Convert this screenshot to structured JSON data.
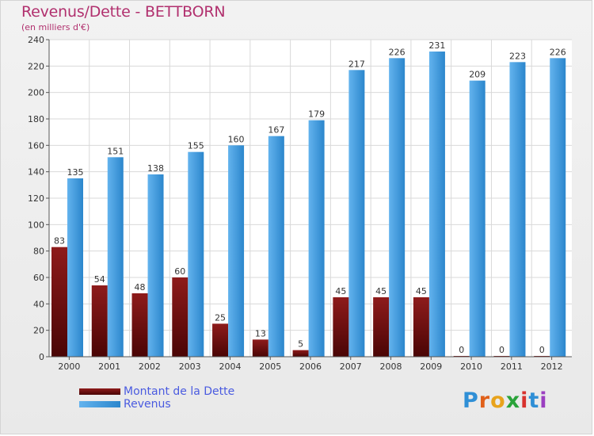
{
  "chart_data": {
    "type": "bar",
    "title": "Revenus/Dette - BETTBORN",
    "subtitle": "(en milliers d'€)",
    "categories": [
      "2000",
      "2001",
      "2002",
      "2003",
      "2004",
      "2005",
      "2006",
      "2007",
      "2008",
      "2009",
      "2010",
      "2011",
      "2012"
    ],
    "series": [
      {
        "name": "Montant de la Dette",
        "color": "#7a1010",
        "values": [
          83,
          54,
          48,
          60,
          25,
          13,
          5,
          45,
          45,
          45,
          0,
          0,
          0
        ]
      },
      {
        "name": "Revenus",
        "color": "#3b99e0",
        "values": [
          135,
          151,
          138,
          155,
          160,
          167,
          179,
          217,
          226,
          231,
          209,
          223,
          226
        ]
      }
    ],
    "ylim": [
      0,
      240
    ],
    "yticks": [
      0,
      20,
      40,
      60,
      80,
      100,
      120,
      140,
      160,
      180,
      200,
      220,
      240
    ],
    "grid": true,
    "legend_position": "bottom-left"
  },
  "branding": {
    "logo_letters": [
      "P",
      "r",
      "o",
      "x",
      "i",
      "t",
      "i"
    ],
    "logo_colors": [
      "#2f8fd6",
      "#e0601a",
      "#e8a31c",
      "#2aa33a",
      "#d8322e",
      "#2f8fd6",
      "#9b3fc0"
    ]
  }
}
